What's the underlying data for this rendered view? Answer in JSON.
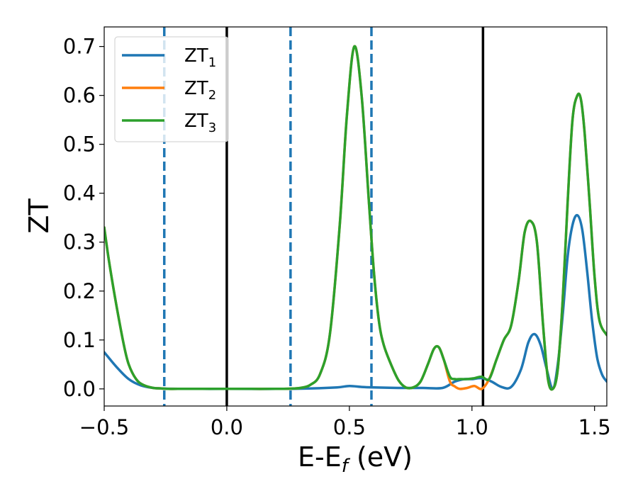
{
  "chart_data": {
    "type": "line",
    "xlabel": "E-E",
    "xlabel_sub": "f",
    "xlabel_unit": " (eV)",
    "ylabel": "ZT",
    "xlim": [
      -0.5,
      1.55
    ],
    "ylim": [
      -0.035,
      0.74
    ],
    "xticks": [
      -0.5,
      0.0,
      0.5,
      1.0,
      1.5
    ],
    "xtick_labels": [
      "−0.5",
      "0.0",
      "0.5",
      "1.0",
      "1.5"
    ],
    "yticks": [
      0.0,
      0.1,
      0.2,
      0.3,
      0.4,
      0.5,
      0.6,
      0.7
    ],
    "ytick_labels": [
      "0.0",
      "0.1",
      "0.2",
      "0.3",
      "0.4",
      "0.5",
      "0.6",
      "0.7"
    ],
    "grid": false,
    "legend_position": "top-left",
    "vlines_solid": [
      0.0,
      1.045
    ],
    "vlines_dashed": [
      -0.255,
      0.26,
      0.59
    ],
    "series": [
      {
        "name": "ZT",
        "sub": "1",
        "color": "#1f77b4",
        "x": [
          -0.5,
          -0.45,
          -0.4,
          -0.35,
          -0.3,
          -0.25,
          -0.2,
          -0.1,
          0.0,
          0.2,
          0.35,
          0.45,
          0.5,
          0.55,
          0.6,
          0.7,
          0.8,
          0.88,
          0.93,
          0.97,
          1.0,
          1.04,
          1.08,
          1.12,
          1.16,
          1.2,
          1.23,
          1.255,
          1.28,
          1.305,
          1.33,
          1.35,
          1.37,
          1.39,
          1.41,
          1.43,
          1.45,
          1.47,
          1.49,
          1.51,
          1.53,
          1.55
        ],
        "y": [
          0.075,
          0.045,
          0.02,
          0.007,
          0.002,
          0.0005,
          0.0002,
          0.0,
          0.0,
          0.0,
          0.001,
          0.003,
          0.006,
          0.004,
          0.003,
          0.002,
          0.002,
          0.002,
          0.015,
          0.02,
          0.02,
          0.022,
          0.015,
          0.004,
          0.004,
          0.04,
          0.095,
          0.112,
          0.09,
          0.04,
          0.0,
          0.05,
          0.15,
          0.27,
          0.335,
          0.355,
          0.325,
          0.24,
          0.14,
          0.065,
          0.03,
          0.015
        ]
      },
      {
        "name": "ZT",
        "sub": "2",
        "color": "#ff7f0e",
        "x": [
          -0.5,
          -0.48,
          -0.45,
          -0.42,
          -0.4,
          -0.37,
          -0.34,
          -0.3,
          -0.27,
          -0.24,
          -0.2,
          -0.1,
          0.0,
          0.1,
          0.2,
          0.26,
          0.3,
          0.34,
          0.38,
          0.42,
          0.46,
          0.49,
          0.52,
          0.55,
          0.58,
          0.6,
          0.62,
          0.64,
          0.67,
          0.7,
          0.73,
          0.76,
          0.79,
          0.82,
          0.845,
          0.865,
          0.885,
          0.91,
          0.93,
          0.95,
          0.98,
          1.01,
          1.04,
          1.07,
          1.1,
          1.13,
          1.16,
          1.19,
          1.215,
          1.24,
          1.265,
          1.29,
          1.31,
          1.33,
          1.35,
          1.37,
          1.39,
          1.41,
          1.43,
          1.445,
          1.46,
          1.48,
          1.5,
          1.52,
          1.55
        ],
        "y": [
          0.33,
          0.26,
          0.17,
          0.09,
          0.05,
          0.02,
          0.008,
          0.002,
          0.001,
          0.0,
          0.0,
          0.0,
          0.0,
          0.0,
          0.0,
          0.0005,
          0.002,
          0.008,
          0.03,
          0.11,
          0.33,
          0.56,
          0.7,
          0.6,
          0.38,
          0.24,
          0.14,
          0.09,
          0.05,
          0.018,
          0.003,
          0.003,
          0.015,
          0.05,
          0.082,
          0.085,
          0.06,
          0.015,
          0.005,
          0.0,
          0.002,
          0.006,
          0.0,
          0.02,
          0.06,
          0.1,
          0.13,
          0.22,
          0.32,
          0.343,
          0.3,
          0.13,
          0.02,
          0.0,
          0.04,
          0.18,
          0.38,
          0.55,
          0.6,
          0.59,
          0.52,
          0.38,
          0.23,
          0.14,
          0.11
        ]
      },
      {
        "name": "ZT",
        "sub": "3",
        "color": "#2ca02c",
        "x": [
          -0.5,
          -0.48,
          -0.45,
          -0.42,
          -0.4,
          -0.37,
          -0.34,
          -0.3,
          -0.27,
          -0.24,
          -0.2,
          -0.1,
          0.0,
          0.1,
          0.2,
          0.26,
          0.3,
          0.34,
          0.38,
          0.42,
          0.46,
          0.49,
          0.52,
          0.55,
          0.58,
          0.6,
          0.62,
          0.64,
          0.67,
          0.7,
          0.73,
          0.76,
          0.79,
          0.82,
          0.845,
          0.865,
          0.885,
          0.91,
          0.93,
          0.95,
          0.98,
          1.01,
          1.04,
          1.07,
          1.1,
          1.13,
          1.16,
          1.19,
          1.215,
          1.24,
          1.265,
          1.29,
          1.31,
          1.33,
          1.35,
          1.37,
          1.39,
          1.41,
          1.43,
          1.445,
          1.46,
          1.48,
          1.5,
          1.52,
          1.55
        ],
        "y": [
          0.33,
          0.26,
          0.17,
          0.09,
          0.05,
          0.02,
          0.008,
          0.002,
          0.001,
          0.0,
          0.0,
          0.0,
          0.0,
          0.0,
          0.0,
          0.0005,
          0.002,
          0.008,
          0.03,
          0.11,
          0.33,
          0.56,
          0.7,
          0.6,
          0.38,
          0.24,
          0.14,
          0.09,
          0.05,
          0.018,
          0.003,
          0.003,
          0.015,
          0.05,
          0.082,
          0.085,
          0.06,
          0.025,
          0.02,
          0.02,
          0.02,
          0.022,
          0.025,
          0.02,
          0.06,
          0.1,
          0.13,
          0.22,
          0.32,
          0.343,
          0.3,
          0.13,
          0.02,
          0.0,
          0.04,
          0.18,
          0.38,
          0.55,
          0.6,
          0.59,
          0.52,
          0.38,
          0.23,
          0.14,
          0.11
        ]
      }
    ]
  }
}
